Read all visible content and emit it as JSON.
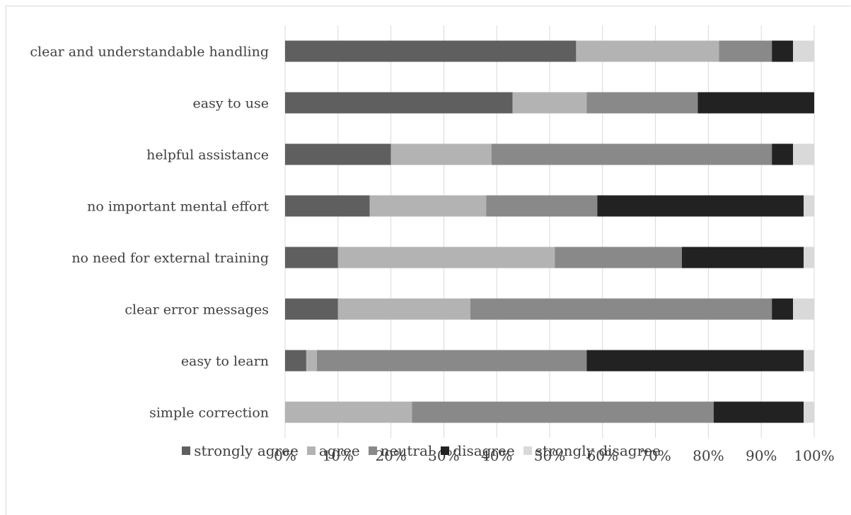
{
  "chart_data": {
    "type": "bar",
    "orientation": "horizontal",
    "stacked": "percent",
    "categories": [
      "clear and understandable handling",
      "easy to use",
      "helpful assistance",
      "no important mental effort",
      "no need for external training",
      "clear error messages",
      "easy to learn",
      "simple correction"
    ],
    "series": [
      {
        "name": "strongly agree",
        "color": "#5f5f5f",
        "values": [
          55,
          43,
          20,
          16,
          10,
          10,
          4,
          0
        ]
      },
      {
        "name": "agree",
        "color": "#b3b3b3",
        "values": [
          27,
          14,
          19,
          22,
          41,
          25,
          2,
          24
        ]
      },
      {
        "name": "neutral",
        "color": "#898989",
        "values": [
          10,
          21,
          53,
          21,
          24,
          57,
          51,
          57
        ]
      },
      {
        "name": "disagree",
        "color": "#222222",
        "values": [
          4,
          22,
          4,
          39,
          23,
          4,
          41,
          17
        ]
      },
      {
        "name": "strongly disagree",
        "color": "#d9d9d9",
        "values": [
          4,
          0,
          4,
          2,
          2,
          4,
          2,
          2
        ]
      }
    ],
    "x_ticks": [
      "0%",
      "10%",
      "20%",
      "30%",
      "40%",
      "50%",
      "60%",
      "70%",
      "80%",
      "90%",
      "100%"
    ],
    "xlim": [
      0,
      100
    ],
    "grid": "vertical",
    "legend_position": "bottom",
    "title": "",
    "xlabel": "",
    "ylabel": ""
  }
}
